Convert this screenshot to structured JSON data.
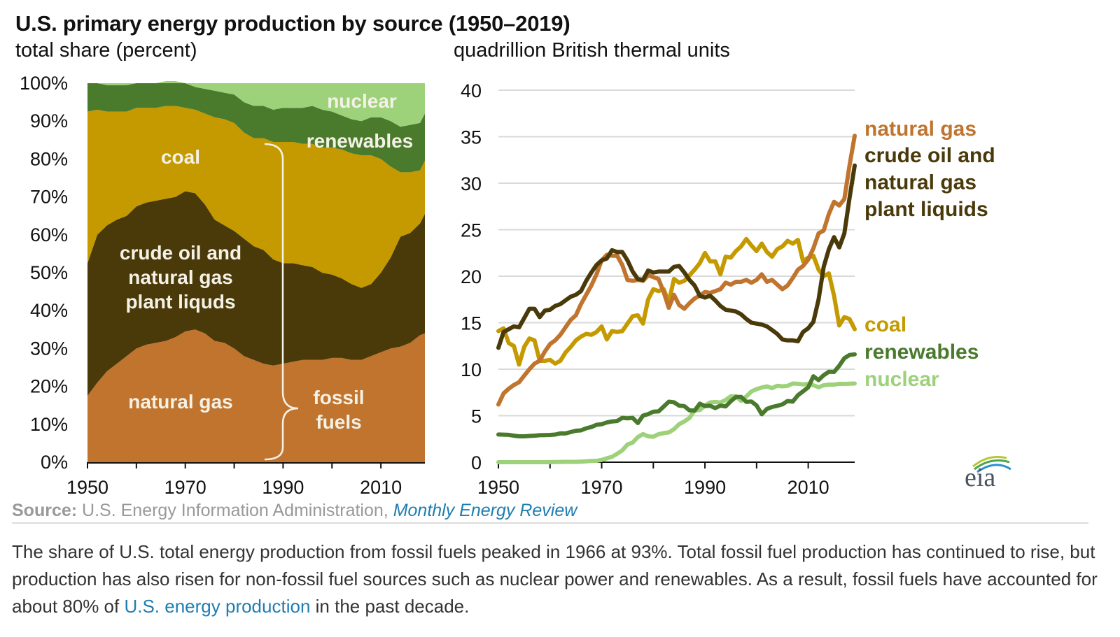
{
  "header": {
    "title": "U.S. primary energy production by source (1950–2019)",
    "left_subtitle": "total share (percent)",
    "right_subtitle": "quadrillion British thermal units"
  },
  "colors": {
    "natural_gas": "#c0742e",
    "crude_oil_ngpl": "#4a3a0a",
    "coal": "#c49a00",
    "renewables": "#4a7a2c",
    "nuclear": "#9dd17a"
  },
  "source": {
    "label": "Source:",
    "text": "U.S. Energy Information Administration,",
    "link": "Monthly Energy Review"
  },
  "caption": {
    "part1": "The share of U.S. total energy production from fossil fuels peaked in 1966 at 93%. Total fossil fuel production has continued to rise, but production has also risen for non-fossil fuel sources such as nuclear power and renewables. As a result, fossil fuels have accounted for about 80% of ",
    "link": "U.S. energy production",
    "part2": " in the past decade."
  },
  "logo": {
    "text": "eia"
  },
  "chart_data": [
    {
      "type": "area",
      "stacked": true,
      "title": "total share (percent)",
      "xlabel": "",
      "ylabel": "percent",
      "xlim": [
        1950,
        2019
      ],
      "ylim": [
        0,
        100
      ],
      "x_ticks": [
        1950,
        1970,
        1990,
        2010
      ],
      "x_minor_ticks": [
        1960,
        1980,
        2000
      ],
      "y_ticks": [
        "0%",
        "10%",
        "20%",
        "30%",
        "40%",
        "50%",
        "60%",
        "70%",
        "80%",
        "90%",
        "100%"
      ],
      "x": [
        1950,
        1952,
        1954,
        1956,
        1958,
        1960,
        1962,
        1964,
        1966,
        1968,
        1970,
        1972,
        1974,
        1976,
        1978,
        1980,
        1982,
        1984,
        1986,
        1988,
        1990,
        1992,
        1994,
        1996,
        1998,
        2000,
        2002,
        2004,
        2006,
        2008,
        2010,
        2012,
        2014,
        2016,
        2018,
        2019
      ],
      "series": [
        {
          "name": "natural gas",
          "key": "natural_gas",
          "label": "natural gas",
          "values": [
            17.5,
            21,
            24,
            26,
            28,
            30,
            31,
            31.5,
            32,
            33,
            34.5,
            35,
            34,
            32,
            31.5,
            30,
            28,
            27,
            26,
            25.5,
            26,
            26.5,
            27,
            27,
            27,
            27.5,
            27.5,
            27,
            27,
            28,
            29,
            30,
            30.5,
            31.5,
            33.5,
            34
          ]
        },
        {
          "name": "crude oil and natural gas plant liquids",
          "key": "crude_oil_ngpl",
          "label": [
            "crude oil and",
            "natural gas",
            "plant liquds"
          ],
          "values": [
            35,
            39,
            38.5,
            38,
            37,
            37.5,
            37.5,
            37.5,
            37.5,
            37,
            37,
            36,
            34,
            32,
            31,
            31,
            31,
            30,
            30,
            28,
            26.5,
            26,
            25,
            24.5,
            23,
            22,
            21,
            20,
            19,
            19,
            21,
            24,
            29,
            29,
            29.5,
            31.5
          ]
        },
        {
          "name": "coal",
          "key": "coal",
          "label": "coal",
          "values": [
            40,
            33,
            30,
            28.5,
            27.5,
            26,
            25,
            24.5,
            24.5,
            24,
            22,
            22,
            24,
            27,
            28,
            28.5,
            28,
            28.5,
            29.5,
            31,
            32,
            32,
            32,
            32.5,
            33,
            33.5,
            34,
            34.5,
            35,
            34,
            30,
            24,
            17,
            16,
            14,
            14
          ]
        },
        {
          "name": "renewables",
          "key": "renewables",
          "label": "renewables",
          "values": [
            7.5,
            7,
            7,
            7,
            7,
            6.5,
            6.5,
            6.5,
            6.5,
            6.5,
            6.5,
            6,
            6.5,
            7,
            7,
            7.5,
            8,
            8.5,
            8.5,
            8.5,
            9,
            9,
            9.5,
            10,
            10,
            9.5,
            9,
            9,
            9,
            10,
            11,
            12,
            12,
            12.5,
            12.5,
            12.5
          ]
        },
        {
          "name": "nuclear",
          "key": "nuclear",
          "label": "nuclear",
          "values": [
            0,
            0,
            0,
            0,
            0,
            0,
            0,
            0,
            0,
            0.5,
            0.5,
            1,
            1.5,
            2.5,
            2.5,
            3,
            5,
            6,
            6,
            7,
            6.5,
            6.5,
            6.5,
            6,
            7,
            7.5,
            8.5,
            9.5,
            10,
            9,
            9,
            10,
            11.5,
            10.5,
            9.5,
            8
          ]
        }
      ],
      "annotations": [
        {
          "text": [
            "fossil",
            "fuels"
          ],
          "type": "brace",
          "spans": "natural gas, crude oil and natural gas plant liquids, coal"
        }
      ]
    },
    {
      "type": "line",
      "title": "quadrillion British thermal units",
      "xlabel": "",
      "ylabel": "quadrillion Btu",
      "xlim": [
        1950,
        2019
      ],
      "ylim": [
        0,
        40
      ],
      "x_ticks": [
        1950,
        1970,
        1990,
        2010
      ],
      "x_minor_ticks": [
        1960,
        1980,
        2000
      ],
      "y_ticks": [
        0,
        5,
        10,
        15,
        20,
        25,
        30,
        35,
        40
      ],
      "grid": true,
      "legend": "right",
      "x": [
        1950,
        1951,
        1952,
        1953,
        1954,
        1955,
        1956,
        1957,
        1958,
        1959,
        1960,
        1961,
        1962,
        1963,
        1964,
        1965,
        1966,
        1967,
        1968,
        1969,
        1970,
        1971,
        1972,
        1973,
        1974,
        1975,
        1976,
        1977,
        1978,
        1979,
        1980,
        1981,
        1982,
        1983,
        1984,
        1985,
        1986,
        1987,
        1988,
        1989,
        1990,
        1991,
        1992,
        1993,
        1994,
        1995,
        1996,
        1997,
        1998,
        1999,
        2000,
        2001,
        2002,
        2003,
        2004,
        2005,
        2006,
        2007,
        2008,
        2009,
        2010,
        2011,
        2012,
        2013,
        2014,
        2015,
        2016,
        2017,
        2018,
        2019
      ],
      "series": [
        {
          "name": "natural gas",
          "key": "natural_gas",
          "values": [
            6.2,
            7.4,
            7.9,
            8.3,
            8.6,
            9.3,
            10,
            10.6,
            10.9,
            11.9,
            12.7,
            13.1,
            13.7,
            14.5,
            15.3,
            15.8,
            17,
            18,
            19,
            20.2,
            21.7,
            22.3,
            22.2,
            22.2,
            21.2,
            19.6,
            19.5,
            19.6,
            19.5,
            20.1,
            19.9,
            19.7,
            18.3,
            16.6,
            18.0,
            16.9,
            16.5,
            17.1,
            17.6,
            17.9,
            18.3,
            18.2,
            18.4,
            18.6,
            19.3,
            19.1,
            19.4,
            19.4,
            19.6,
            19.3,
            19.6,
            20.2,
            19.4,
            19.6,
            19.1,
            18.6,
            19.0,
            19.8,
            20.7,
            21.1,
            21.8,
            23.0,
            24.6,
            24.9,
            26.7,
            28.0,
            27.6,
            28.3,
            31.9,
            35.1
          ]
        },
        {
          "name": "crude oil and natural gas plant liquids",
          "key": "crude_oil_ngpl",
          "values": [
            12.3,
            14.0,
            14.3,
            14.6,
            14.5,
            15.5,
            16.5,
            16.5,
            15.6,
            16.3,
            16.4,
            16.8,
            17.0,
            17.4,
            17.8,
            18.0,
            18.4,
            19.5,
            20.4,
            21.2,
            21.7,
            21.9,
            22.8,
            22.6,
            22.6,
            21.7,
            20.5,
            19.7,
            19.6,
            20.6,
            20.4,
            20.5,
            20.5,
            20.5,
            21.0,
            21.1,
            20.4,
            19.6,
            19.0,
            17.9,
            17.7,
            17.9,
            17.4,
            16.8,
            16.4,
            16.3,
            16.2,
            15.9,
            15.4,
            15.0,
            14.9,
            14.8,
            14.6,
            14.2,
            13.8,
            13.2,
            13.1,
            13.1,
            13.0,
            14.0,
            14.4,
            15.1,
            17.5,
            21.0,
            22.9,
            24.2,
            23.1,
            24.6,
            28.4,
            31.9
          ]
        },
        {
          "name": "coal",
          "key": "coal",
          "values": [
            14.1,
            14.4,
            12.8,
            12.5,
            10.5,
            12.4,
            13.3,
            13.1,
            10.9,
            10.9,
            11.0,
            10.6,
            10.9,
            11.8,
            12.4,
            13.1,
            13.5,
            13.8,
            13.7,
            14.0,
            14.6,
            13.2,
            14.1,
            14.0,
            14.1,
            14.9,
            15.7,
            15.8,
            14.9,
            17.5,
            18.6,
            18.4,
            18.6,
            17.2,
            19.7,
            19.3,
            19.5,
            20.1,
            20.7,
            21.4,
            22.5,
            21.6,
            21.6,
            20.2,
            22.1,
            22.0,
            22.7,
            23.2,
            24.0,
            23.3,
            22.7,
            23.5,
            22.6,
            22.1,
            22.9,
            23.2,
            23.8,
            23.5,
            23.9,
            21.6,
            22.0,
            22.2,
            20.7,
            20.0,
            20.3,
            17.9,
            14.7,
            15.6,
            15.4,
            14.3
          ]
        },
        {
          "name": "renewables",
          "key": "renewables",
          "values": [
            2.98,
            2.96,
            2.94,
            2.85,
            2.78,
            2.78,
            2.82,
            2.85,
            2.9,
            2.92,
            2.93,
            2.97,
            3.1,
            3.09,
            3.24,
            3.38,
            3.42,
            3.65,
            3.78,
            4.02,
            4.08,
            4.27,
            4.38,
            4.43,
            4.77,
            4.72,
            4.77,
            4.21,
            5.01,
            5.17,
            5.43,
            5.46,
            5.98,
            6.5,
            6.44,
            6.08,
            6.03,
            5.58,
            5.54,
            6.29,
            6.04,
            6.07,
            5.82,
            6.08,
            5.99,
            6.56,
            7.01,
            7.02,
            6.49,
            6.52,
            6.1,
            5.16,
            5.73,
            5.94,
            6.06,
            6.22,
            6.58,
            6.51,
            7.2,
            7.62,
            8.05,
            9.24,
            8.83,
            9.35,
            9.73,
            9.7,
            10.37,
            11.18,
            11.53,
            11.6
          ]
        },
        {
          "name": "nuclear",
          "key": "nuclear",
          "values": [
            0,
            0,
            0,
            0,
            0,
            0,
            0,
            0.0,
            0.0,
            0.0,
            0.01,
            0.02,
            0.03,
            0.04,
            0.04,
            0.04,
            0.06,
            0.09,
            0.14,
            0.15,
            0.24,
            0.41,
            0.58,
            0.91,
            1.27,
            1.9,
            2.11,
            2.7,
            3.02,
            2.78,
            2.74,
            3.01,
            3.13,
            3.2,
            3.55,
            4.08,
            4.38,
            4.75,
            5.59,
            5.6,
            6.1,
            6.42,
            6.48,
            6.41,
            6.69,
            7.08,
            7.09,
            6.6,
            7.07,
            7.61,
            7.86,
            8.03,
            8.15,
            7.96,
            8.22,
            8.16,
            8.21,
            8.46,
            8.43,
            8.36,
            8.43,
            8.27,
            8.06,
            8.27,
            8.34,
            8.34,
            8.43,
            8.42,
            8.44,
            8.46
          ]
        }
      ],
      "legend_labels": [
        {
          "key": "natural_gas",
          "lines": [
            "natural gas"
          ]
        },
        {
          "key": "crude_oil_ngpl",
          "lines": [
            "crude oil and",
            "natural gas",
            "plant liquids"
          ]
        },
        {
          "key": "coal",
          "lines": [
            "coal"
          ]
        },
        {
          "key": "renewables",
          "lines": [
            "renewables"
          ]
        },
        {
          "key": "nuclear",
          "lines": [
            "nuclear"
          ]
        }
      ]
    }
  ]
}
